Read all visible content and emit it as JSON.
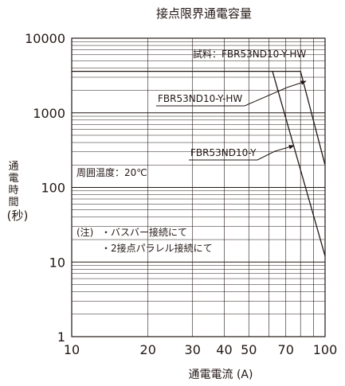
{
  "chart_data": {
    "type": "line",
    "title": "接点限界通電容量",
    "xlabel": "通電電流 (A)",
    "ylabel_chars": [
      "通",
      "電",
      "時",
      "間"
    ],
    "ylabel_unit": "(秒)",
    "x_scale": "log",
    "y_scale": "log",
    "xlim": [
      10,
      100
    ],
    "ylim": [
      1,
      10000
    ],
    "x_ticks": [
      10,
      20,
      30,
      40,
      50,
      70,
      100
    ],
    "x_tick_labels": [
      "10",
      "20",
      "30",
      "40",
      "50",
      "70",
      "100"
    ],
    "y_ticks": [
      1,
      10,
      100,
      1000,
      10000
    ],
    "y_tick_labels": [
      "1",
      "10",
      "100",
      "1000",
      "10000"
    ],
    "grid": true,
    "series": [
      {
        "name": "FBR53ND10-Y-HW",
        "x": [
          10,
          80,
          100
        ],
        "y": [
          3600,
          3600,
          200
        ]
      },
      {
        "name": "FBR53ND10-Y",
        "x": [
          62,
          100
        ],
        "y": [
          3600,
          12
        ]
      }
    ],
    "annotations": {
      "sample_label": "試料：FBR53ND10-Y-HW",
      "series_label_hw": "FBR53ND10-Y-HW",
      "series_label_y": "FBR53ND10-Y",
      "ambient": "周囲温度：20℃",
      "note_title": "(注)",
      "note_1": "・バスバー接続にて",
      "note_2": "・2接点パラレル接続にて"
    }
  }
}
